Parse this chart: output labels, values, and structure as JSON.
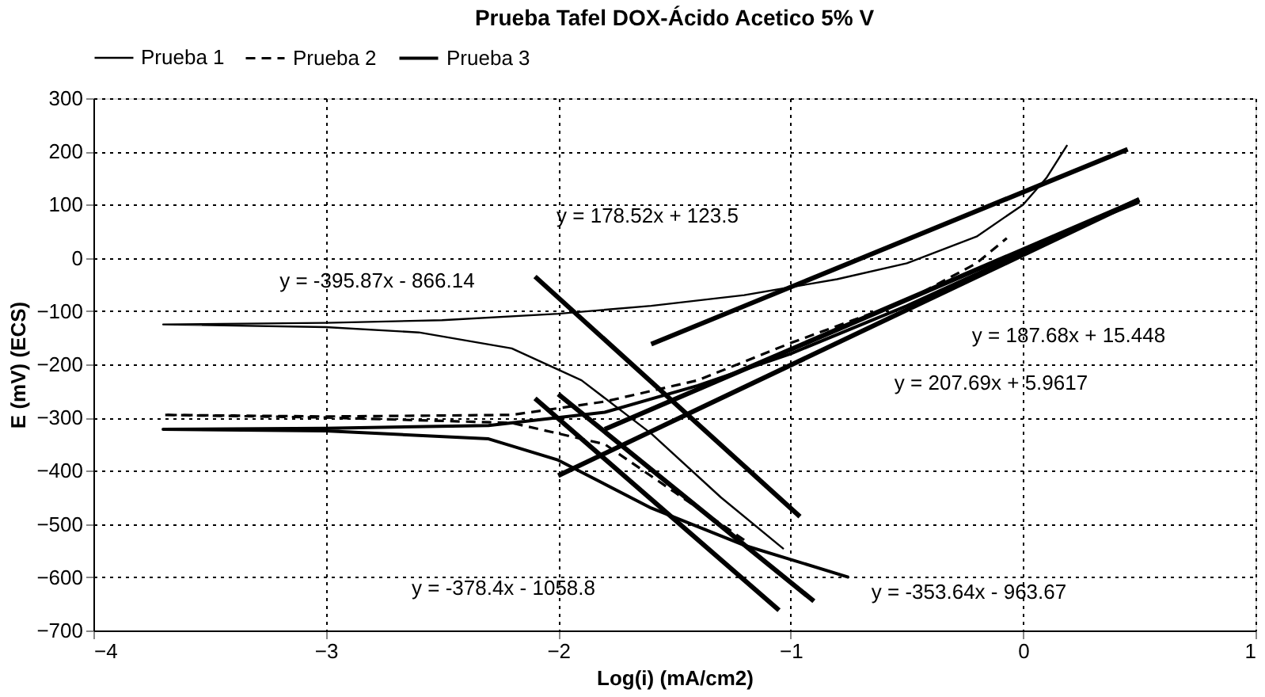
{
  "chart_data": {
    "type": "line",
    "title": "Prueba Tafel DOX-Ácido Acetico 5% V",
    "xlabel": "Log(i)          (mA/cm2)",
    "ylabel": "E (mV) (ECS)",
    "xlim": [
      -4,
      1
    ],
    "xticks": [
      -4,
      -3,
      -2,
      -1,
      0,
      1
    ],
    "ylim": [
      -700,
      300
    ],
    "yticks": [
      -700,
      -600,
      -500,
      -400,
      -300,
      -200,
      -100,
      0,
      100,
      200,
      300
    ],
    "grid": true,
    "legend": "top",
    "series": [
      {
        "name": "Prueba 1",
        "color": "#000000",
        "line_style": "solid",
        "x": [
          -1.03,
          -1.3,
          -1.6,
          -1.9,
          -2.2,
          -2.6,
          -3.0,
          -3.7,
          -3.0,
          -2.5,
          -2.0,
          -1.6,
          -1.2,
          -0.8,
          -0.5,
          -0.2,
          0.0,
          0.1,
          0.19
        ],
        "values": [
          -547,
          -450,
          -330,
          -230,
          -170,
          -140,
          -130,
          -125,
          -122,
          -117,
          -105,
          -90,
          -70,
          -40,
          -10,
          40,
          100,
          150,
          212
        ]
      },
      {
        "name": "Prueba 2",
        "color": "#000000",
        "line_style": "dashed",
        "x": [
          -1.2,
          -1.5,
          -1.8,
          -2.2,
          -3.0,
          -3.7,
          -3.0,
          -2.2,
          -1.8,
          -1.4,
          -1.0,
          -0.5,
          -0.2,
          -0.07
        ],
        "values": [
          -530,
          -440,
          -350,
          -310,
          -300,
          -295,
          -298,
          -295,
          -270,
          -230,
          -160,
          -80,
          -10,
          37
        ]
      },
      {
        "name": "Prueba 3",
        "color": "#000000",
        "line_style": "solid",
        "x": [
          -0.75,
          -1.2,
          -1.6,
          -2.0,
          -2.3,
          -3.0,
          -3.7,
          -3.0,
          -2.3,
          -1.8,
          -1.4,
          -1.0,
          -0.5,
          0.0,
          0.3,
          0.5
        ],
        "values": [
          -600,
          -540,
          -470,
          -380,
          -340,
          -325,
          -322,
          -320,
          -315,
          -290,
          -240,
          -180,
          -90,
          10,
          70,
          105
        ]
      },
      {
        "type": "line",
        "color": "#000000",
        "line_style": "solid",
        "x": [
          -1.6,
          0.45
        ],
        "values": [
          -162,
          204
        ]
      },
      {
        "type": "line",
        "color": "#000000",
        "line_style": "solid",
        "x": [
          -1.8,
          0.5
        ],
        "values": [
          -322,
          109
        ]
      },
      {
        "type": "line",
        "color": "#000000",
        "line_style": "solid",
        "x": [
          -2.0,
          0.5
        ],
        "values": [
          -409,
          110
        ]
      },
      {
        "type": "line",
        "color": "#000000",
        "line_style": "solid",
        "x": [
          -2.1,
          -0.96
        ],
        "values": [
          -35,
          -486
        ]
      },
      {
        "type": "line",
        "color": "#000000",
        "line_style": "solid",
        "x": [
          -2.1,
          -1.05
        ],
        "values": [
          -264,
          -662
        ]
      },
      {
        "type": "line",
        "color": "#000000",
        "line_style": "solid",
        "x": [
          -2.0,
          -0.9
        ],
        "values": [
          -256,
          -645
        ]
      }
    ],
    "annotations": [
      "y = 178.52x + 123.5",
      "y = -395.87x - 866.14",
      "y = 187.68x + 15.448",
      "y = 207.69x + 5.9617",
      "y = -378.4x - 1058.8",
      "y = -353.64x - 963.67"
    ]
  }
}
